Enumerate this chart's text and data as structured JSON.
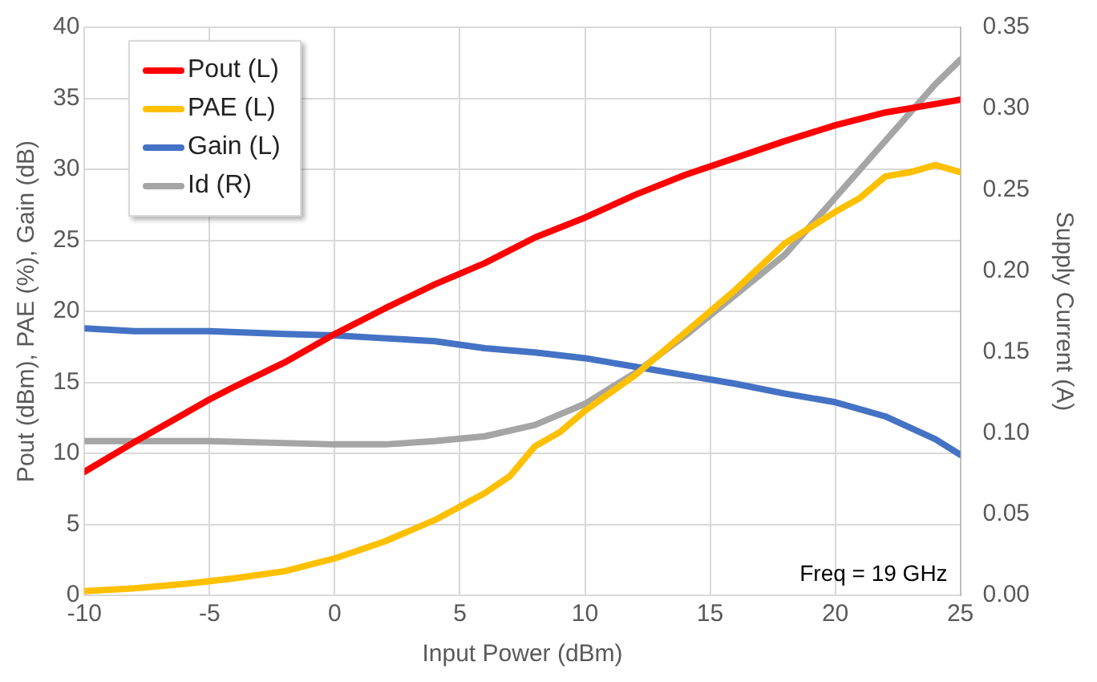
{
  "chart_data": {
    "type": "line",
    "xlabel": "Input Power (dBm)",
    "ylabel": "Pout (dBm), PAE (%), Gain (dB)",
    "y2label": "Supply Current (A)",
    "xlim": [
      -10,
      25
    ],
    "xticks": [
      -10,
      -5,
      0,
      5,
      10,
      15,
      20,
      25
    ],
    "ylim": [
      0,
      40
    ],
    "yticks": [
      0,
      5,
      10,
      15,
      20,
      25,
      30,
      35,
      40
    ],
    "y2lim": [
      0,
      0.35
    ],
    "y2ticks": [
      {
        "value": 0,
        "label": "0.00"
      },
      {
        "value": 0.05,
        "label": "0.05"
      },
      {
        "value": 0.1,
        "label": "0.10"
      },
      {
        "value": 0.15,
        "label": "0.15"
      },
      {
        "value": 0.2,
        "label": "0.20"
      },
      {
        "value": 0.25,
        "label": "0.25"
      },
      {
        "value": 0.3,
        "label": "0.30"
      },
      {
        "value": 0.35,
        "label": "0.35"
      }
    ],
    "grid": true,
    "legend": "top left",
    "marker": "none",
    "line_style": "solid",
    "annotations": [
      "Freq = 19 GHz"
    ],
    "series": [
      {
        "name": "Pout (L)",
        "color": "#ff0000",
        "x": [
          -10,
          -8,
          -6,
          -5,
          -4,
          -2,
          0,
          2,
          4,
          6,
          8,
          10,
          12,
          14,
          16,
          18,
          20,
          22,
          24,
          25
        ],
        "values": [
          8.7,
          10.8,
          12.8,
          13.8,
          14.7,
          16.4,
          18.4,
          20.2,
          21.9,
          23.4,
          25.2,
          26.6,
          28.2,
          29.6,
          30.8,
          32,
          33.1,
          34,
          34.6,
          34.9
        ]
      },
      {
        "name": "PAE (L)",
        "color": "#ffc000",
        "x": [
          -10,
          -8,
          -6,
          -4,
          -2,
          0,
          2,
          4,
          6,
          7,
          8,
          9,
          10,
          12,
          14,
          16,
          18,
          20,
          21,
          22,
          23,
          24,
          25
        ],
        "values": [
          0.3,
          0.5,
          0.8,
          1.2,
          1.7,
          2.6,
          3.8,
          5.3,
          7.2,
          8.4,
          10.5,
          11.5,
          13,
          15.5,
          18.5,
          21.5,
          24.8,
          27,
          28,
          29.5,
          29.8,
          30.3,
          29.8
        ]
      },
      {
        "name": "Gain (L)",
        "color": "#4472c4",
        "x": [
          -10,
          -8,
          -5,
          -2,
          0,
          2,
          4,
          6,
          8,
          10,
          12,
          14,
          16,
          18,
          20,
          22,
          24,
          25
        ],
        "values": [
          18.8,
          18.6,
          18.6,
          18.4,
          18.3,
          18.1,
          17.9,
          17.4,
          17.1,
          16.7,
          16.1,
          15.5,
          14.9,
          14.2,
          13.6,
          12.6,
          11,
          9.9
        ]
      },
      {
        "name": "Id (R)",
        "color": "#a5a5a5",
        "axis": "y2",
        "x": [
          -10,
          -5,
          0,
          2,
          4,
          6,
          8,
          10,
          12,
          14,
          16,
          18,
          20,
          22,
          24,
          25
        ],
        "values": [
          0.095,
          0.095,
          0.093,
          0.093,
          0.095,
          0.098,
          0.105,
          0.118,
          0.137,
          0.16,
          0.185,
          0.21,
          0.245,
          0.28,
          0.315,
          0.33
        ]
      }
    ]
  }
}
